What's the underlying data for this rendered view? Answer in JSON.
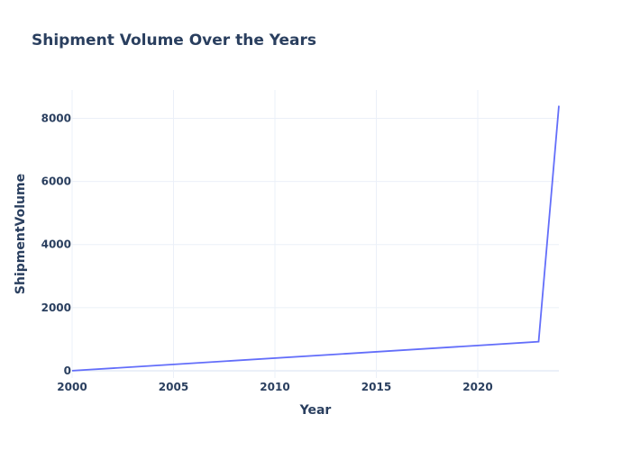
{
  "chart_data": {
    "type": "line",
    "title": "Shipment Volume Over the Years",
    "xlabel": "Year",
    "ylabel": "ShipmentVolume",
    "xlim": [
      2000,
      2024
    ],
    "ylim": [
      -230,
      8900
    ],
    "x_ticks": [
      2000,
      2005,
      2010,
      2015,
      2020
    ],
    "y_ticks": [
      0,
      2000,
      4000,
      6000,
      8000
    ],
    "grid": true,
    "legend": "none",
    "series": [
      {
        "color": "#636efa",
        "x": [
          2000,
          2023,
          2024
        ],
        "y": [
          0,
          920,
          8400
        ]
      }
    ]
  }
}
